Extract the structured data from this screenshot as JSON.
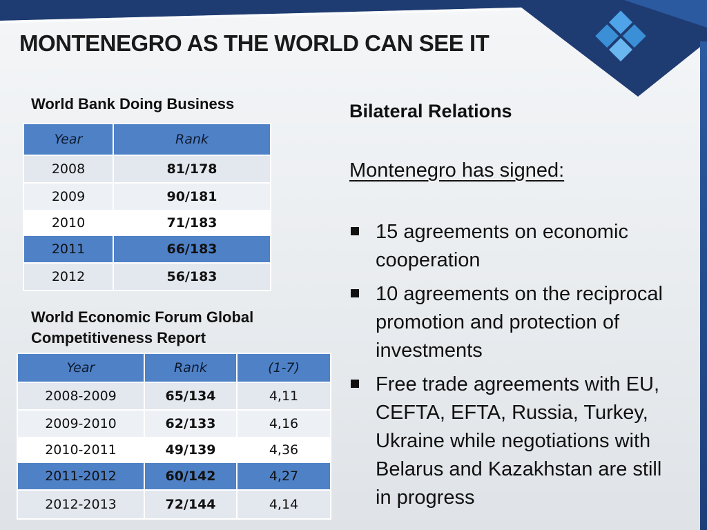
{
  "slide": {
    "title": "MONTENEGRO AS THE WORLD CAN SEE IT"
  },
  "world_bank": {
    "section_title": "World Bank Doing Business",
    "headers": [
      "Year",
      "Rank"
    ],
    "rows": [
      {
        "year": "2008",
        "rank": "81/178"
      },
      {
        "year": "2009",
        "rank": "90/181"
      },
      {
        "year": "2010",
        "rank": "71/183"
      },
      {
        "year": "2011",
        "rank": "66/183"
      },
      {
        "year": "2012",
        "rank": "56/183"
      }
    ]
  },
  "wef": {
    "section_title_line1": "World Economic Forum Global",
    "section_title_line2": "Competitiveness Report",
    "headers": [
      "Year",
      "Rank",
      "(1-7)"
    ],
    "rows": [
      {
        "year": "2008-2009",
        "rank": "65/134",
        "score": "4,11"
      },
      {
        "year": "2009-2010",
        "rank": "62/133",
        "score": "4,16"
      },
      {
        "year": "2010-2011",
        "rank": "49/139",
        "score": "4,36"
      },
      {
        "year": "2011-2012",
        "rank": "60/142",
        "score": "4,27"
      },
      {
        "year": "2012-2013",
        "rank": "72/144",
        "score": "4,14"
      }
    ]
  },
  "bilateral": {
    "title": "Bilateral Relations",
    "intro": "Montenegro has signed:",
    "items": [
      "15 agreements on economic cooperation",
      "10 agreements on the reciprocal promotion and protection of investments",
      "Free trade agreements with EU, CEFTA, EFTA, Russia, Turkey, Ukraine while negotiations with Belarus and Kazakhstan are still in progress"
    ]
  },
  "colors": {
    "accent_blue": "#4f81c7",
    "header_navy": "#1e3c72",
    "logo_blue": "#3a8fd6"
  },
  "icons": {
    "logo": "diamond-grid-logo-icon",
    "bullet": "square-bullet-icon"
  }
}
